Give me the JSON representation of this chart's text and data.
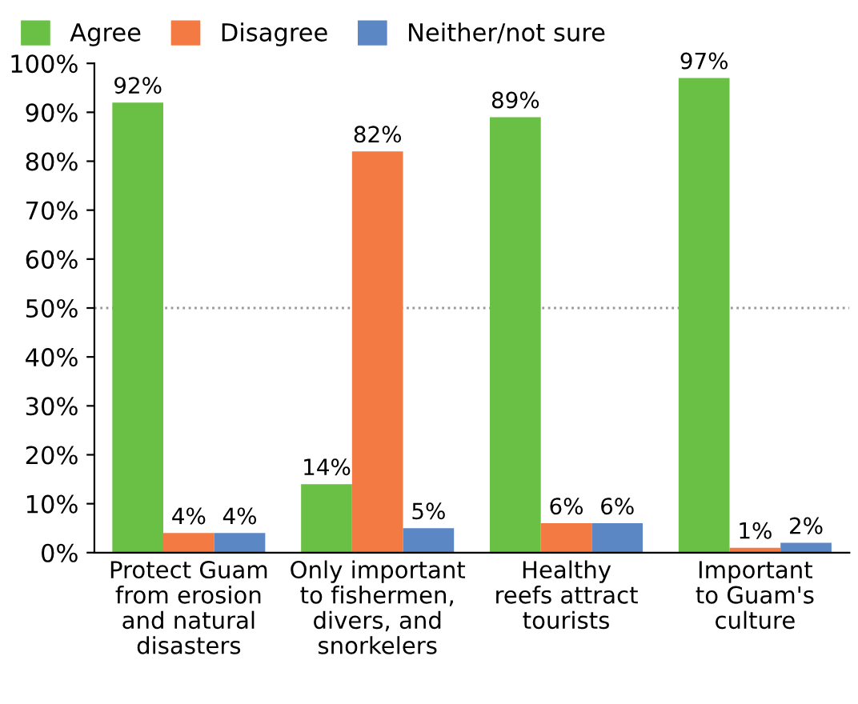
{
  "chart_data": {
    "type": "bar",
    "categories": [
      "Protect Guam\nfrom erosion\nand natural\ndisasters",
      "Only important\nto fishermen,\ndivers, and\nsnorkelers",
      "Healthy\nreefs attract\ntourists",
      "Important\nto Guam's\nculture"
    ],
    "series": [
      {
        "name": "Agree",
        "color": "#6abf45",
        "values": [
          92,
          14,
          89,
          97
        ],
        "value_labels": [
          "92%",
          "14%",
          "89%",
          "97%"
        ]
      },
      {
        "name": "Disagree",
        "color": "#f47a44",
        "values": [
          4,
          82,
          6,
          1
        ],
        "value_labels": [
          "4%",
          "82%",
          "6%",
          "1%"
        ]
      },
      {
        "name": "Neither/not sure",
        "color": "#5b87c5",
        "values": [
          4,
          5,
          6,
          2
        ],
        "value_labels": [
          "4%",
          "5%",
          "6%",
          "2%"
        ]
      }
    ],
    "ylim": [
      0,
      100
    ],
    "yticks": [
      {
        "value": 0,
        "label": "0%"
      },
      {
        "value": 10,
        "label": "10%"
      },
      {
        "value": 20,
        "label": "20%"
      },
      {
        "value": 30,
        "label": "30%"
      },
      {
        "value": 40,
        "label": "40%"
      },
      {
        "value": 50,
        "label": "50%"
      },
      {
        "value": 60,
        "label": "60%"
      },
      {
        "value": 70,
        "label": "70%"
      },
      {
        "value": 80,
        "label": "80%"
      },
      {
        "value": 90,
        "label": "90%"
      },
      {
        "value": 100,
        "label": "100%"
      }
    ],
    "ref_lines": [
      {
        "axis": "y",
        "value": 50,
        "color": "#999999",
        "line_style": "dotted"
      }
    ],
    "grid": false,
    "legend": "top left"
  }
}
